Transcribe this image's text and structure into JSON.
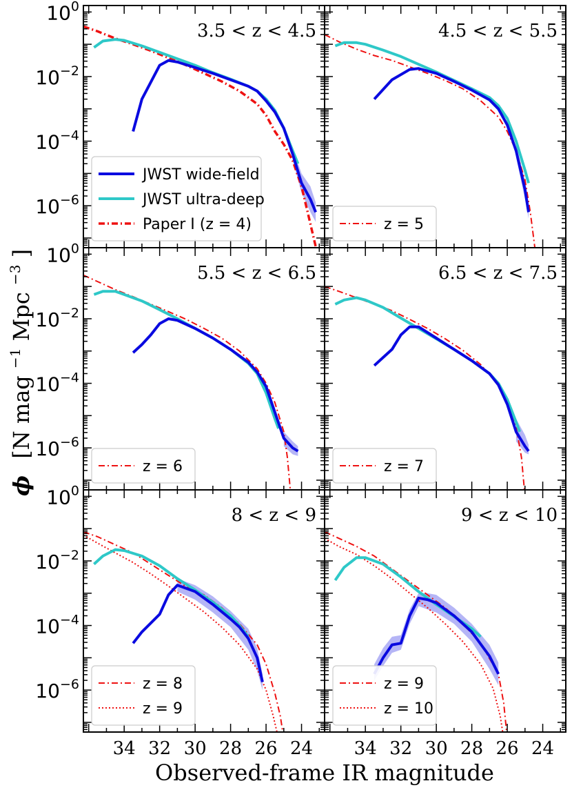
{
  "chart_data": {
    "type": "line",
    "figure": {
      "xlabel": "Observed-frame IR magnitude",
      "ylabel_symbol": "ϕ",
      "ylabel_units": "[N mag",
      "ylabel_exp1": "−1",
      "ylabel_mid": " Mpc",
      "ylabel_exp2": "−3",
      "ylabel_end": "]",
      "xlim": [
        36.3,
        22.7
      ],
      "ylim_log10": [
        -7.3,
        0.2
      ],
      "xticks": [
        34,
        32,
        30,
        28,
        26,
        24
      ],
      "xtick_labels": [
        "34",
        "32",
        "30",
        "28",
        "26",
        "24"
      ],
      "yticks_log10": [
        0,
        -2,
        -4,
        -6
      ],
      "ytick_base": "10",
      "ytick_exponents": [
        "0",
        "−2",
        "−4",
        "−6"
      ],
      "yscale": "log"
    },
    "colors": {
      "wide": "#0a0ae0",
      "ultra": "#2ec8c8",
      "model": "#ee1111"
    },
    "legend_main": [
      {
        "label": "JWST wide-field",
        "style": "wide"
      },
      {
        "label": "JWST ultra-deep",
        "style": "ultra"
      },
      {
        "label": "Paper I (z = 4)",
        "style": "model-bold"
      }
    ],
    "panels": [
      {
        "title": "3.5 < z < 4.5",
        "legend": [],
        "wide": {
          "x": [
            33.5,
            33,
            32,
            31.5,
            31,
            30,
            29,
            28,
            27,
            26.5,
            26,
            25.5,
            25,
            24.5,
            24,
            23.5,
            23.2
          ],
          "log10_y": [
            -3.7,
            -2.7,
            -1.65,
            -1.5,
            -1.55,
            -1.72,
            -1.9,
            -2.1,
            -2.3,
            -2.45,
            -2.75,
            -3.1,
            -3.6,
            -4.4,
            -5.3,
            -5.8,
            -6.2
          ]
        },
        "ultra": {
          "x": [
            35.7,
            35.2,
            34.5,
            34,
            33,
            32,
            31,
            30,
            29,
            28,
            27,
            26.5,
            26,
            25.5,
            25,
            24.5,
            24.2
          ],
          "log10_y": [
            -1.1,
            -0.9,
            -0.85,
            -0.88,
            -1.05,
            -1.25,
            -1.45,
            -1.65,
            -1.88,
            -2.08,
            -2.3,
            -2.45,
            -2.7,
            -3.05,
            -3.6,
            -4.3,
            -4.7
          ]
        },
        "wide_band": {
          "x": [
            24.5,
            24,
            23.5,
            23.2
          ],
          "log10_lo": [
            -4.6,
            -5.6,
            -6.2,
            -6.5
          ],
          "log10_hi": [
            -4.2,
            -5.0,
            -5.4,
            -5.9
          ]
        },
        "model": [
          {
            "style": "model-bold",
            "x": [
              36.3,
              35.5,
              34.5,
              33.5,
              32.5,
              31.5,
              30.5,
              29.5,
              28.5,
              27.5,
              26.5,
              26,
              25.5,
              25,
              24.5,
              24,
              23.7,
              23.4,
              23.1
            ],
            "log10_y": [
              -0.45,
              -0.6,
              -0.82,
              -1.0,
              -1.2,
              -1.42,
              -1.65,
              -1.9,
              -2.15,
              -2.45,
              -2.85,
              -3.2,
              -3.7,
              -4.1,
              -4.6,
              -5.4,
              -6.1,
              -6.8,
              -7.5
            ]
          }
        ]
      },
      {
        "title": "4.5 < z < 5.5",
        "legend": [
          {
            "label": "z = 5",
            "style": "model-dashdot"
          }
        ],
        "wide": {
          "x": [
            33.5,
            32.5,
            31.5,
            31,
            30,
            29,
            28,
            27,
            26.5,
            26,
            25.5,
            25,
            24.8
          ],
          "log10_y": [
            -2.7,
            -2.1,
            -1.78,
            -1.75,
            -1.9,
            -2.15,
            -2.42,
            -2.72,
            -3.0,
            -3.5,
            -4.3,
            -5.5,
            -6.2
          ]
        },
        "ultra": {
          "x": [
            35.7,
            35.2,
            34.5,
            34,
            33,
            32,
            31,
            30,
            29,
            28,
            27,
            26.5,
            26,
            25.5,
            25,
            24.8
          ],
          "log10_y": [
            -1.05,
            -0.95,
            -0.95,
            -1.0,
            -1.18,
            -1.38,
            -1.62,
            -1.86,
            -2.12,
            -2.38,
            -2.65,
            -2.9,
            -3.3,
            -4.0,
            -4.9,
            -5.3
          ]
        },
        "wide_band": {
          "x": [
            25.5,
            25,
            24.8
          ],
          "log10_lo": [
            -4.5,
            -5.8,
            -6.4
          ],
          "log10_hi": [
            -4.1,
            -5.2,
            -5.9
          ]
        },
        "model": [
          {
            "style": "model-dashdot",
            "x": [
              36.3,
              35.5,
              34.5,
              33.5,
              32.5,
              31.5,
              30.5,
              29.5,
              28.5,
              27.5,
              26.5,
              26,
              25.5,
              25,
              24.7,
              24.4
            ],
            "log10_y": [
              -0.7,
              -0.92,
              -1.15,
              -1.35,
              -1.5,
              -1.7,
              -1.9,
              -2.12,
              -2.38,
              -2.75,
              -3.25,
              -3.7,
              -4.3,
              -5.2,
              -6.2,
              -7.5
            ]
          }
        ]
      },
      {
        "title": "5.5 < z < 6.5",
        "legend": [
          {
            "label": "z = 6",
            "style": "model-dashdot"
          }
        ],
        "wide": {
          "x": [
            33.5,
            33,
            32.5,
            32,
            31.5,
            31,
            30,
            29,
            28,
            27,
            26.5,
            26,
            25.5,
            25,
            24.5,
            24.2
          ],
          "log10_y": [
            -3.05,
            -2.8,
            -2.5,
            -2.15,
            -2.0,
            -2.05,
            -2.3,
            -2.6,
            -2.95,
            -3.35,
            -3.65,
            -4.1,
            -4.9,
            -5.7,
            -6.0,
            -6.1
          ]
        },
        "ultra": {
          "x": [
            35.7,
            35.2,
            34.5,
            34,
            33,
            32,
            31,
            30,
            29,
            28,
            27,
            26.5,
            26,
            25.5,
            25.3
          ],
          "log10_y": [
            -1.25,
            -1.15,
            -1.15,
            -1.25,
            -1.45,
            -1.72,
            -2.0,
            -2.3,
            -2.6,
            -2.95,
            -3.38,
            -3.7,
            -4.3,
            -5.1,
            -5.4
          ]
        },
        "wide_band": {
          "x": [
            25,
            24.5,
            24.2
          ],
          "log10_lo": [
            -5.95,
            -6.2,
            -6.25
          ],
          "log10_hi": [
            -5.5,
            -5.8,
            -5.95
          ]
        },
        "model": [
          {
            "style": "model-dashdot",
            "x": [
              36.3,
              35.5,
              34.5,
              33.5,
              32.5,
              31.5,
              30.5,
              29.5,
              28.5,
              27.5,
              26.5,
              26,
              25.5,
              25,
              24.8,
              24.6
            ],
            "log10_y": [
              -0.65,
              -0.85,
              -1.1,
              -1.32,
              -1.55,
              -1.78,
              -2.02,
              -2.3,
              -2.6,
              -3.0,
              -3.55,
              -4.0,
              -4.6,
              -5.5,
              -6.3,
              -7.5
            ]
          }
        ]
      },
      {
        "title": "6.5 < z < 7.5",
        "legend": [
          {
            "label": "z = 7",
            "style": "model-dashdot"
          }
        ],
        "wide": {
          "x": [
            33.5,
            33,
            32.5,
            32,
            31.5,
            31,
            30,
            29,
            28,
            27,
            26.5,
            26,
            25.5,
            25,
            24.8
          ],
          "log10_y": [
            -3.45,
            -3.2,
            -2.95,
            -2.5,
            -2.25,
            -2.25,
            -2.6,
            -2.95,
            -3.3,
            -3.7,
            -4.05,
            -4.65,
            -5.5,
            -5.95,
            -6.1
          ]
        },
        "ultra": {
          "x": [
            35.7,
            35.2,
            34.5,
            34,
            33,
            32,
            31,
            30,
            29,
            28,
            27,
            26.5,
            26,
            25.5,
            25.3
          ],
          "log10_y": [
            -1.55,
            -1.42,
            -1.35,
            -1.42,
            -1.65,
            -1.98,
            -2.3,
            -2.62,
            -2.95,
            -3.3,
            -3.7,
            -4.0,
            -4.5,
            -5.2,
            -5.5
          ]
        },
        "wide_band": {
          "x": [
            25.5,
            25,
            24.8
          ],
          "log10_lo": [
            -5.8,
            -6.15,
            -6.2
          ],
          "log10_hi": [
            -5.1,
            -5.6,
            -5.9
          ]
        },
        "model": [
          {
            "style": "model-dashdot",
            "x": [
              36.3,
              35.5,
              34.5,
              33.5,
              32.5,
              31.5,
              30.5,
              29.5,
              28.5,
              27.5,
              26.5,
              26,
              25.5,
              25.2,
              25.0
            ],
            "log10_y": [
              -1.0,
              -1.15,
              -1.35,
              -1.55,
              -1.75,
              -2.02,
              -2.3,
              -2.62,
              -2.98,
              -3.42,
              -4.05,
              -4.55,
              -5.35,
              -6.3,
              -7.5
            ]
          }
        ]
      },
      {
        "title": "8 < z < 9",
        "legend": [
          {
            "label": "z = 8",
            "style": "model-dashdot"
          },
          {
            "label": "z = 9",
            "style": "model-dotted"
          }
        ],
        "wide": {
          "x": [
            33.5,
            33,
            32,
            31.5,
            31,
            30,
            29,
            28,
            27.5,
            27,
            26.5,
            26.2
          ],
          "log10_y": [
            -4.55,
            -4.2,
            -3.65,
            -3.05,
            -2.75,
            -2.95,
            -3.35,
            -3.8,
            -4.05,
            -4.4,
            -5.0,
            -5.75
          ]
        },
        "ultra": {
          "x": [
            35.7,
            35.2,
            34.5,
            34,
            33,
            32,
            31,
            30,
            29,
            28,
            27.5,
            27
          ],
          "log10_y": [
            -2.1,
            -1.85,
            -1.65,
            -1.68,
            -1.85,
            -2.15,
            -2.55,
            -2.9,
            -3.28,
            -3.7,
            -4.0,
            -4.35
          ]
        },
        "wide_band": {
          "x": [
            31,
            30,
            29,
            28,
            27,
            26.5,
            26.2
          ],
          "log10_lo": [
            -2.95,
            -3.2,
            -3.6,
            -4.05,
            -4.75,
            -5.4,
            -6.0
          ],
          "log10_hi": [
            -2.55,
            -2.75,
            -3.1,
            -3.55,
            -4.1,
            -4.7,
            -5.5
          ]
        },
        "model": [
          {
            "style": "model-dashdot",
            "x": [
              36.3,
              35.5,
              34.5,
              33.5,
              32.5,
              31.5,
              30.5,
              29.5,
              28.5,
              27.5,
              26.5,
              26,
              25.5,
              25.2,
              25.0
            ],
            "log10_y": [
              -1.1,
              -1.25,
              -1.5,
              -1.75,
              -2.1,
              -2.45,
              -2.8,
              -3.05,
              -3.45,
              -3.95,
              -4.6,
              -5.2,
              -6.1,
              -6.8,
              -7.5
            ]
          },
          {
            "style": "model-dotted",
            "x": [
              36.3,
              35.5,
              34.5,
              33.5,
              32.5,
              31.5,
              30.5,
              29.5,
              28.5,
              27.5,
              26.5,
              26,
              25.6,
              25.3
            ],
            "log10_y": [
              -1.2,
              -1.45,
              -1.75,
              -2.05,
              -2.4,
              -2.78,
              -3.18,
              -3.58,
              -4.05,
              -4.6,
              -5.35,
              -6.0,
              -6.8,
              -7.5
            ]
          }
        ]
      },
      {
        "title": "9 < z < 10",
        "legend": [
          {
            "label": "z = 9",
            "style": "model-dashdot"
          },
          {
            "label": "z = 10",
            "style": "model-dotted"
          }
        ],
        "wide": {
          "x": [
            33.5,
            33,
            32.5,
            32,
            31.5,
            31,
            30.5,
            30,
            29,
            28,
            27,
            26.5
          ],
          "log10_y": [
            -5.5,
            -5.0,
            -4.6,
            -4.55,
            -3.7,
            -3.15,
            -3.2,
            -3.3,
            -3.7,
            -4.2,
            -4.95,
            -5.5
          ]
        },
        "ultra": {
          "x": [
            35.7,
            35.2,
            34.5,
            34,
            33,
            32,
            31,
            30,
            29,
            28,
            27.5
          ],
          "log10_y": [
            -2.6,
            -2.2,
            -1.9,
            -1.9,
            -2.1,
            -2.5,
            -2.95,
            -3.35,
            -3.72,
            -4.1,
            -4.35
          ]
        },
        "wide_band": {
          "x": [
            33.5,
            33,
            32.5,
            32,
            31.5,
            31,
            30.5,
            30,
            29,
            28,
            27,
            26.5
          ],
          "log10_lo": [
            -5.7,
            -5.25,
            -4.85,
            -4.75,
            -3.95,
            -3.4,
            -3.5,
            -3.6,
            -3.95,
            -4.5,
            -5.35,
            -5.85
          ],
          "log10_hi": [
            -5.2,
            -4.7,
            -4.35,
            -4.3,
            -3.5,
            -3.0,
            -3.0,
            -3.05,
            -3.45,
            -3.95,
            -4.6,
            -5.15
          ]
        },
        "model": [
          {
            "style": "model-dashdot",
            "x": [
              36.3,
              35.5,
              34.5,
              33.5,
              32.5,
              31.5,
              30.5,
              29.5,
              28.5,
              27.5,
              26.5,
              26.2,
              26.0
            ],
            "log10_y": [
              -1.1,
              -1.3,
              -1.55,
              -1.85,
              -2.25,
              -2.65,
              -3.05,
              -3.45,
              -3.95,
              -4.55,
              -5.5,
              -6.4,
              -7.5
            ]
          },
          {
            "style": "model-dotted",
            "x": [
              36.3,
              35.5,
              34.5,
              33.5,
              32.5,
              31.5,
              30.5,
              29.5,
              28.5,
              27.5,
              26.8,
              26.4,
              26.2
            ],
            "log10_y": [
              -1.3,
              -1.55,
              -1.8,
              -2.15,
              -2.55,
              -3.0,
              -3.45,
              -3.95,
              -4.5,
              -5.2,
              -5.95,
              -6.8,
              -7.5
            ]
          }
        ]
      }
    ]
  }
}
